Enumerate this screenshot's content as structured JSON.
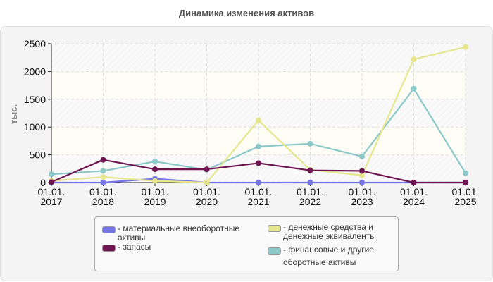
{
  "title": "Динамика изменения активов",
  "y_axis_label": "тыс.",
  "legend": [
    {
      "label": "- материальные внеоборотные активы",
      "color": "#7575e6"
    },
    {
      "label": "- запасы",
      "color": "#6e1450"
    },
    {
      "label": "- денежные средства и денежные эквиваленты",
      "color": "#e6e68c"
    },
    {
      "label": "- финансовые и другие оборотные активы",
      "color": "#8cc8c8"
    }
  ],
  "chart_data": {
    "type": "line",
    "title": "Динамика изменения активов",
    "xlabel": "",
    "ylabel": "тыс.",
    "ylim": [
      0,
      2500
    ],
    "yticks": [
      0,
      500,
      1000,
      1500,
      2000,
      2500
    ],
    "grid": true,
    "legend_position": "bottom",
    "categories": [
      "01.01. 2017",
      "01.01. 2018",
      "01.01. 2019",
      "01.01. 2020",
      "01.01. 2021",
      "01.01. 2022",
      "01.01. 2023",
      "01.01. 2024",
      "01.01. 2025"
    ],
    "series": [
      {
        "name": "материальные внеоборотные активы",
        "color": "#7575e6",
        "values": [
          0,
          0,
          70,
          0,
          0,
          0,
          0,
          0,
          0
        ]
      },
      {
        "name": "запасы",
        "color": "#6e1450",
        "values": [
          10,
          410,
          240,
          240,
          350,
          220,
          210,
          0,
          0
        ]
      },
      {
        "name": "денежные средства и денежные эквиваленты",
        "color": "#e6e68c",
        "values": [
          30,
          100,
          30,
          0,
          1120,
          230,
          130,
          2220,
          2440
        ]
      },
      {
        "name": "финансовые и другие оборотные активы",
        "color": "#8cc8c8",
        "values": [
          150,
          210,
          380,
          230,
          650,
          700,
          470,
          1690,
          170
        ]
      }
    ]
  }
}
